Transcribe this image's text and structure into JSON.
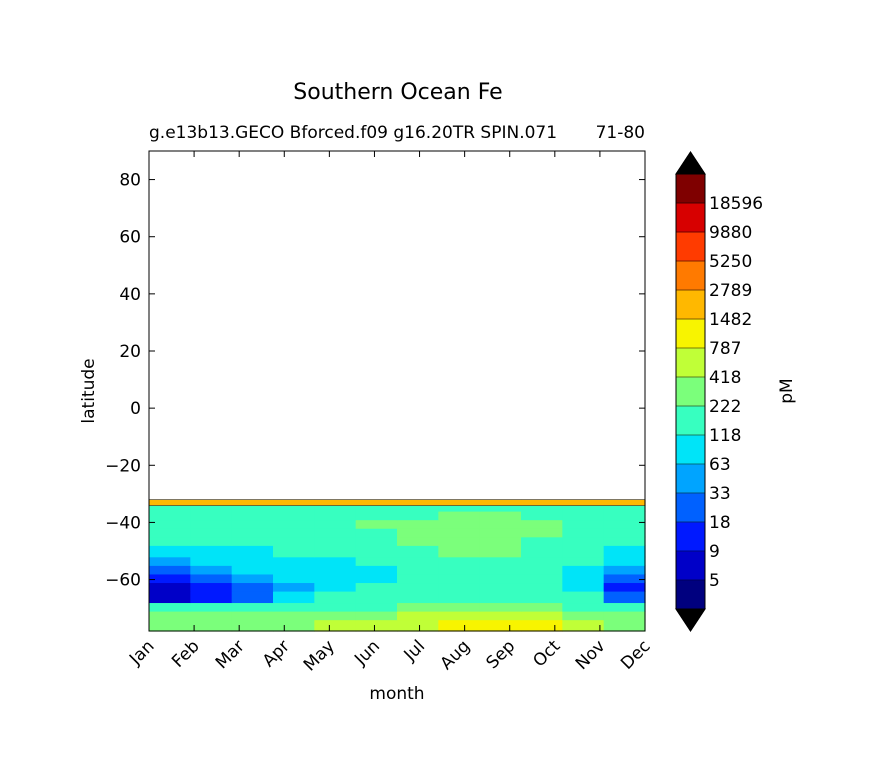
{
  "chart_data": {
    "type": "heatmap",
    "title": "Southern Ocean Fe",
    "subtitle_left": "g.e13b13.GECO Bforced.f09 g16.20TR SPIN.071",
    "subtitle_right": "71-80",
    "xlabel": "month",
    "ylabel": "latitude",
    "x_categories": [
      "Jan",
      "Feb",
      "Mar",
      "Apr",
      "May",
      "Jun",
      "Jul",
      "Aug",
      "Sep",
      "Oct",
      "Nov",
      "Dec"
    ],
    "ylim": [
      -78,
      90
    ],
    "y_ticks": [
      80,
      60,
      40,
      20,
      0,
      -20,
      -40,
      -60
    ],
    "y_tick_labels": [
      "80",
      "60",
      "40",
      "20",
      "0",
      "−20",
      "−40",
      "−60"
    ],
    "colorbar": {
      "label": "pM",
      "levels": [
        "5",
        "9",
        "18",
        "33",
        "63",
        "118",
        "222",
        "418",
        "787",
        "1482",
        "2789",
        "5250",
        "9880",
        "18596"
      ],
      "colors": [
        "#00007f",
        "#0000c8",
        "#0019ff",
        "#0061ff",
        "#00a4ff",
        "#00e4f8",
        "#37ffc0",
        "#7bff7b",
        "#c0ff37",
        "#f8f400",
        "#ffb800",
        "#ff7a00",
        "#ff3b00",
        "#d70000",
        "#7f0000"
      ],
      "extend": "both",
      "under_color": "#000000",
      "over_color": "#000000"
    },
    "field": {
      "lat_edges": [
        -78,
        -74,
        -71,
        -68,
        -64,
        -61,
        -58,
        -55,
        -52,
        -48,
        -45,
        -42,
        -39,
        -36,
        -34,
        -32
      ],
      "months": [
        "Jan",
        "Feb",
        "Mar",
        "Apr",
        "May",
        "Jun",
        "Jul",
        "Aug",
        "Sep",
        "Oct",
        "Nov",
        "Dec"
      ],
      "bin_index": [
        [
          7,
          7,
          7,
          7,
          8,
          8,
          8,
          9,
          9,
          9,
          8,
          7
        ],
        [
          7,
          7,
          7,
          7,
          7,
          7,
          8,
          8,
          8,
          8,
          7,
          7
        ],
        [
          6,
          6,
          6,
          6,
          6,
          6,
          7,
          7,
          7,
          7,
          6,
          6
        ],
        [
          1,
          2,
          3,
          5,
          6,
          6,
          6,
          6,
          6,
          6,
          6,
          3
        ],
        [
          1,
          2,
          3,
          4,
          5,
          6,
          6,
          6,
          6,
          6,
          5,
          2
        ],
        [
          2,
          3,
          4,
          5,
          5,
          5,
          6,
          6,
          6,
          6,
          5,
          3
        ],
        [
          3,
          4,
          5,
          5,
          5,
          5,
          6,
          6,
          6,
          6,
          5,
          4
        ],
        [
          4,
          5,
          5,
          5,
          5,
          6,
          6,
          6,
          6,
          6,
          6,
          5
        ],
        [
          5,
          5,
          5,
          6,
          6,
          6,
          6,
          7,
          7,
          6,
          6,
          5
        ],
        [
          6,
          6,
          6,
          6,
          6,
          6,
          7,
          7,
          7,
          6,
          6,
          6
        ],
        [
          6,
          6,
          6,
          6,
          6,
          6,
          7,
          7,
          7,
          7,
          6,
          6
        ],
        [
          6,
          6,
          6,
          6,
          6,
          7,
          7,
          7,
          7,
          7,
          6,
          6
        ],
        [
          6,
          6,
          6,
          6,
          6,
          6,
          6,
          7,
          7,
          6,
          6,
          6
        ],
        [
          6,
          6,
          6,
          6,
          6,
          6,
          6,
          6,
          6,
          6,
          6,
          6
        ],
        [
          10,
          10,
          10,
          10,
          10,
          10,
          10,
          10,
          10,
          10,
          10,
          10
        ]
      ]
    }
  }
}
